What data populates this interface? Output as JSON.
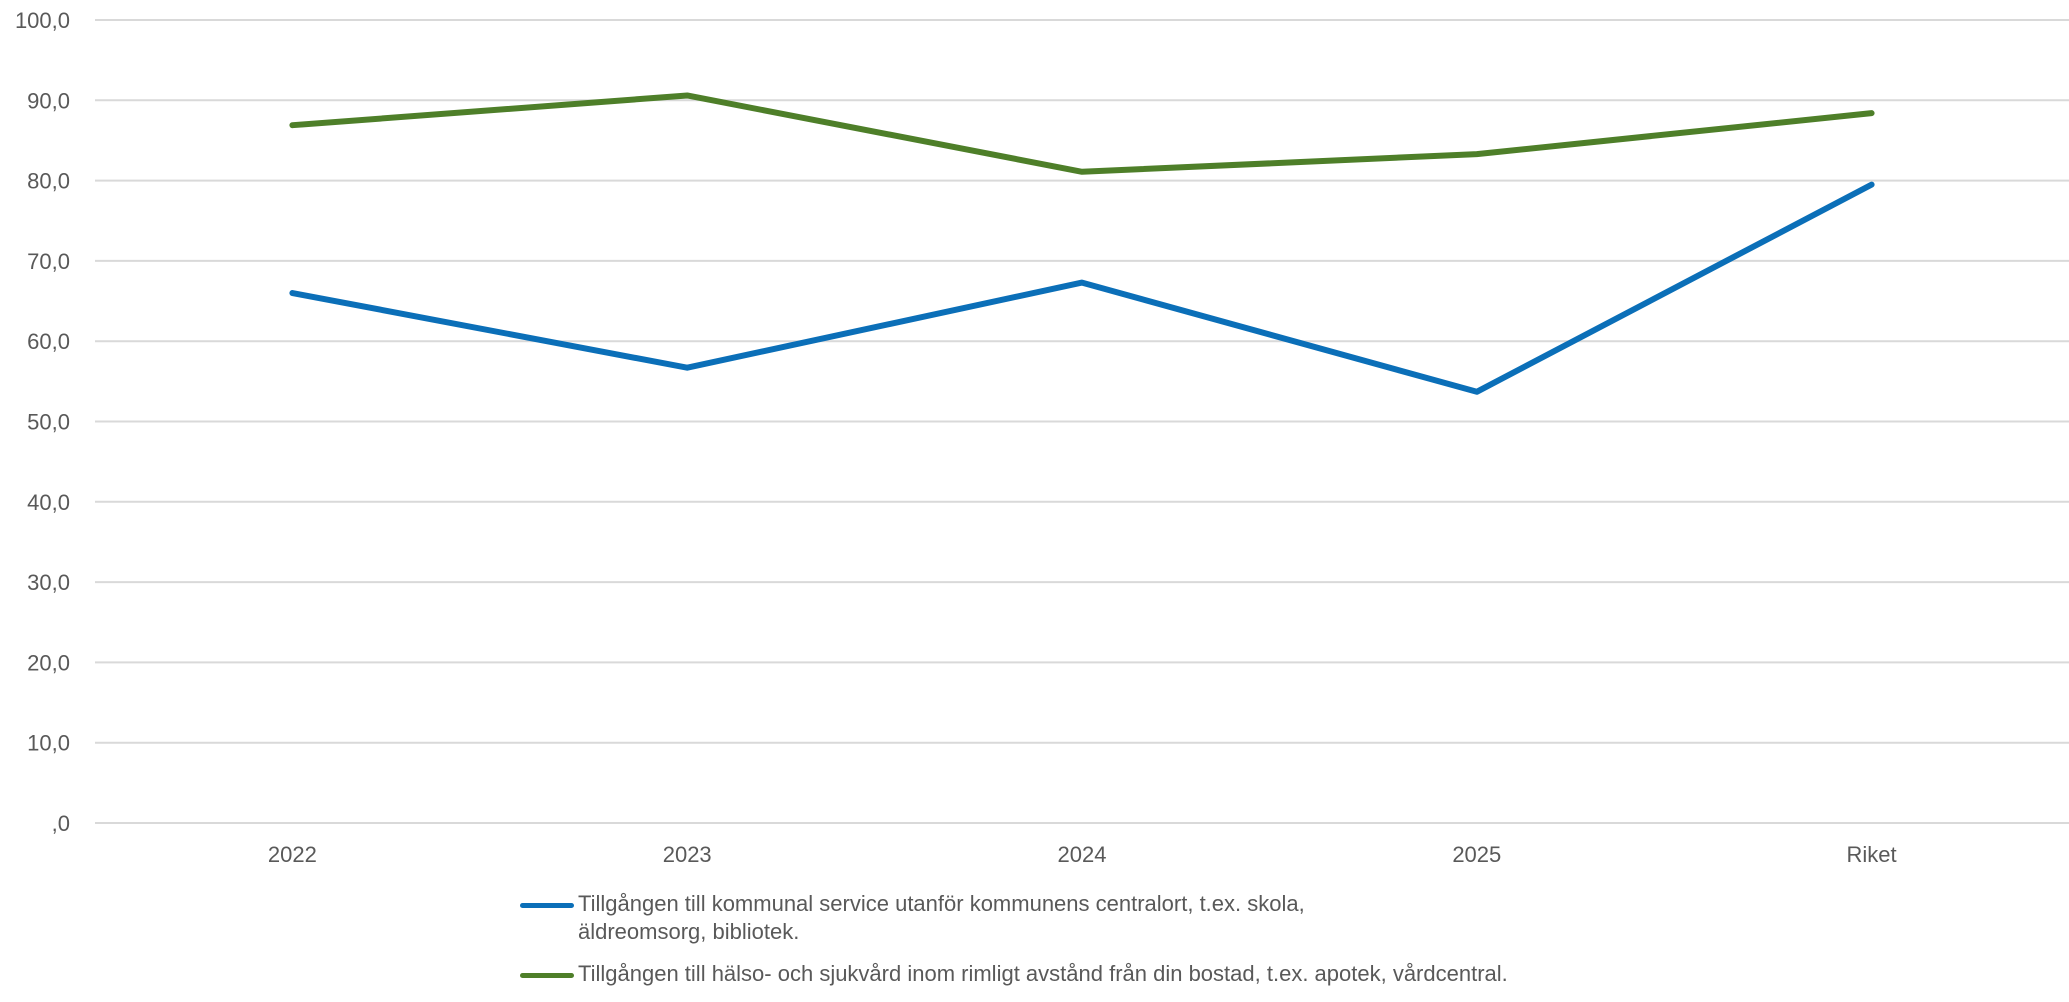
{
  "chart_data": {
    "type": "line",
    "categories": [
      "2022",
      "2023",
      "2024",
      "2025",
      "Riket"
    ],
    "y_ticks": [
      "100,0",
      "90,0",
      "80,0",
      "70,0",
      "60,0",
      "50,0",
      "40,0",
      "30,0",
      "20,0",
      "10,0",
      ",0"
    ],
    "ylim": [
      0,
      100
    ],
    "grid": true,
    "legend_position": "bottom",
    "series": [
      {
        "name": "Tillgången till kommunal service utanför kommunens centralort, t.ex. skola, äldreomsorg, bibliotek.",
        "color": "#0B6FB8",
        "values": [
          66.0,
          56.7,
          67.3,
          53.7,
          79.5
        ]
      },
      {
        "name": "Tillgången till hälso- och sjukvård inom rimligt avstånd från din bostad, t.ex. apotek, vårdcentral.",
        "color": "#4E7F29",
        "values": [
          86.9,
          90.6,
          81.1,
          83.3,
          88.4
        ]
      }
    ]
  }
}
